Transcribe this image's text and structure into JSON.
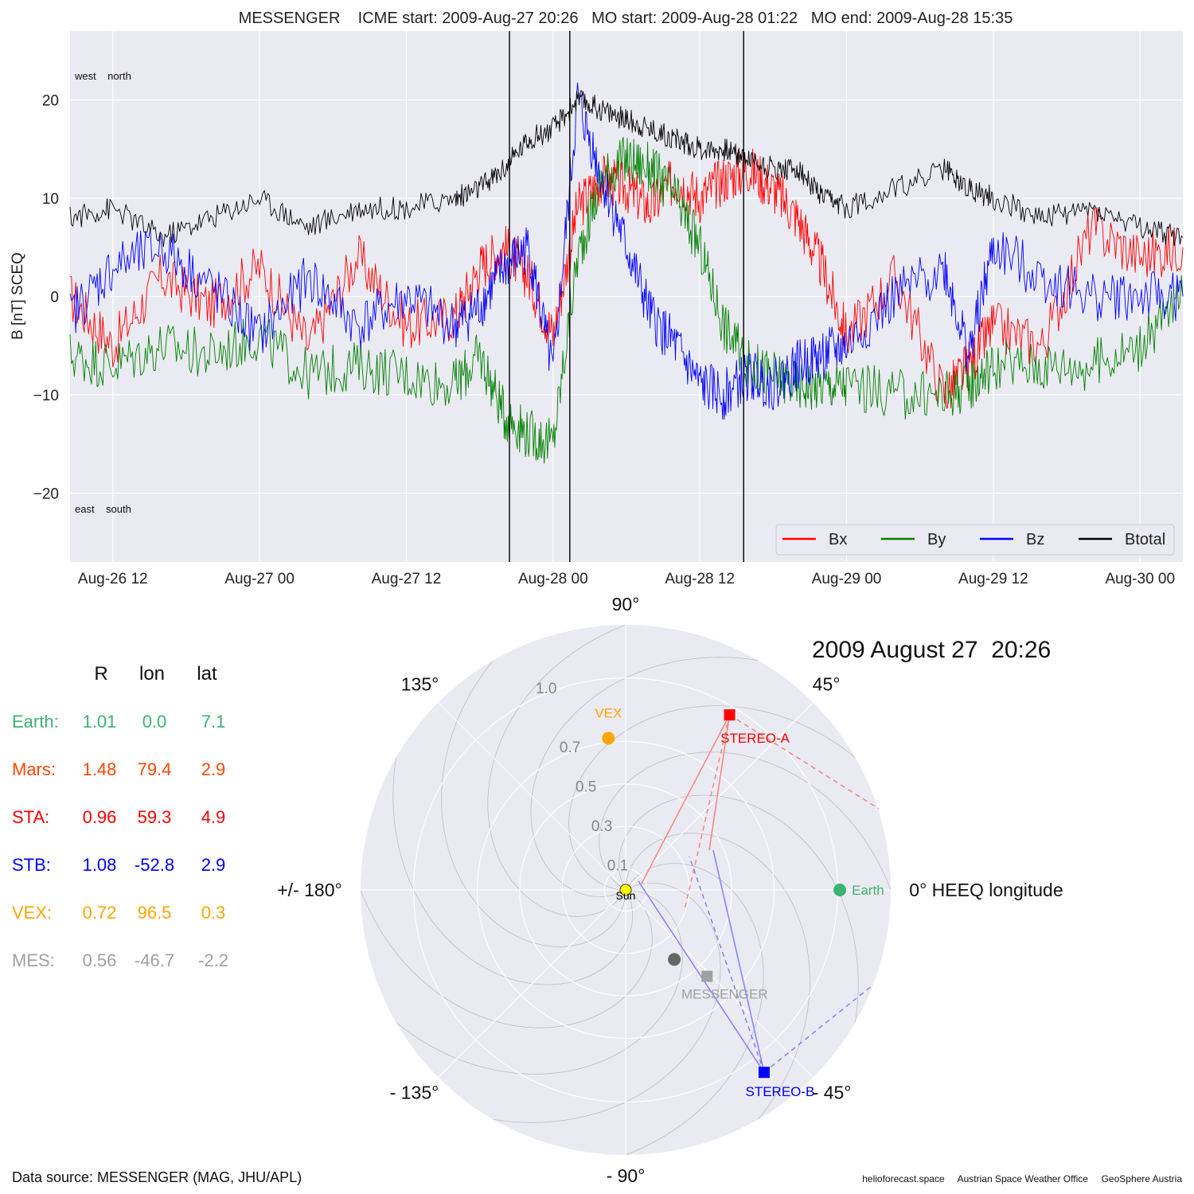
{
  "header": {
    "title": "MESSENGER    ICME start: 2009-Aug-27 20:26   MO start: 2009-Aug-28 01:22   MO end: 2009-Aug-28 15:35"
  },
  "footer": {
    "data_source": "Data source: MESSENGER (MAG, JHU/APL)",
    "credits": "helioforecast.space     Austrian Space Weather Office     GeoSphere Austria"
  },
  "chart_data": [
    {
      "type": "line",
      "title": "MESSENGER    ICME start: 2009-Aug-27 20:26   MO start: 2009-Aug-28 01:22   MO end: 2009-Aug-28 15:35",
      "ylabel": "B [nT] SCEQ",
      "x_range": [
        "2009-08-26 08:30",
        "2009-08-30 03:30"
      ],
      "ylim": [
        -27,
        27
      ],
      "yticks": [
        20,
        10,
        0,
        -10,
        -20
      ],
      "ytick_labels": [
        "20",
        "10",
        "0",
        "−10",
        "−20"
      ],
      "xticks": [
        {
          "t": "2009-08-26 12:00",
          "label": "Aug-26 12"
        },
        {
          "t": "2009-08-27 00:00",
          "label": "Aug-27 00"
        },
        {
          "t": "2009-08-27 12:00",
          "label": "Aug-27 12"
        },
        {
          "t": "2009-08-28 00:00",
          "label": "Aug-28 00"
        },
        {
          "t": "2009-08-28 12:00",
          "label": "Aug-28 12"
        },
        {
          "t": "2009-08-29 00:00",
          "label": "Aug-29 00"
        },
        {
          "t": "2009-08-29 12:00",
          "label": "Aug-29 12"
        },
        {
          "t": "2009-08-30 00:00",
          "label": "Aug-30 00"
        }
      ],
      "grid": true,
      "legend_position": "bottom-right",
      "annotations": {
        "top_left": "west    north",
        "bottom_left": "east    south"
      },
      "event_lines": [
        "2009-08-27 20:26",
        "2009-08-28 01:22",
        "2009-08-28 15:35"
      ],
      "series": [
        {
          "name": "Bx",
          "color": "#ff0000",
          "x": [
            "2009-08-26 08:30",
            "2009-08-26 12:00",
            "2009-08-26 16:00",
            "2009-08-26 20:00",
            "2009-08-27 00:00",
            "2009-08-27 04:00",
            "2009-08-27 08:00",
            "2009-08-27 12:00",
            "2009-08-27 16:00",
            "2009-08-27 18:00",
            "2009-08-27 20:00",
            "2009-08-27 22:00",
            "2009-08-28 00:00",
            "2009-08-28 02:00",
            "2009-08-28 04:00",
            "2009-08-28 06:00",
            "2009-08-28 08:00",
            "2009-08-28 10:00",
            "2009-08-28 12:00",
            "2009-08-28 14:00",
            "2009-08-28 16:00",
            "2009-08-28 18:00",
            "2009-08-28 20:00",
            "2009-08-28 22:00",
            "2009-08-29 00:00",
            "2009-08-29 04:00",
            "2009-08-29 08:00",
            "2009-08-29 10:00",
            "2009-08-29 12:00",
            "2009-08-29 16:00",
            "2009-08-29 20:00",
            "2009-08-30 00:00",
            "2009-08-30 03:30"
          ],
          "values": [
            0,
            -5,
            2,
            -1,
            3,
            -5,
            4,
            -3,
            -2,
            3,
            5,
            2,
            -4,
            9,
            12,
            11,
            9,
            12,
            10,
            12,
            13,
            11,
            8,
            3,
            -4,
            2,
            -10,
            -7,
            -3,
            -5,
            7,
            4,
            5
          ]
        },
        {
          "name": "By",
          "color": "#008000",
          "x": [
            "2009-08-26 08:30",
            "2009-08-26 12:00",
            "2009-08-26 16:00",
            "2009-08-26 20:00",
            "2009-08-27 00:00",
            "2009-08-27 04:00",
            "2009-08-27 08:00",
            "2009-08-27 12:00",
            "2009-08-27 16:00",
            "2009-08-27 18:00",
            "2009-08-27 20:00",
            "2009-08-27 22:00",
            "2009-08-28 00:00",
            "2009-08-28 02:00",
            "2009-08-28 04:00",
            "2009-08-28 06:00",
            "2009-08-28 08:00",
            "2009-08-28 10:00",
            "2009-08-28 12:00",
            "2009-08-28 14:00",
            "2009-08-28 16:00",
            "2009-08-28 18:00",
            "2009-08-28 20:00",
            "2009-08-28 22:00",
            "2009-08-29 00:00",
            "2009-08-29 04:00",
            "2009-08-29 08:00",
            "2009-08-29 10:00",
            "2009-08-29 12:00",
            "2009-08-29 16:00",
            "2009-08-29 20:00",
            "2009-08-30 00:00",
            "2009-08-30 03:30"
          ],
          "values": [
            -6,
            -7,
            -5,
            -6,
            -4,
            -8,
            -7,
            -8,
            -9,
            -6,
            -12,
            -14,
            -15,
            4,
            12,
            14,
            13,
            10,
            5,
            -3,
            -7,
            -8,
            -9,
            -9,
            -9,
            -10,
            -10,
            -9,
            -7,
            -7,
            -7,
            -5,
            0
          ]
        },
        {
          "name": "Bz",
          "color": "#0000ff",
          "x": [
            "2009-08-26 08:30",
            "2009-08-26 12:00",
            "2009-08-26 16:00",
            "2009-08-26 20:00",
            "2009-08-27 00:00",
            "2009-08-27 04:00",
            "2009-08-27 08:00",
            "2009-08-27 12:00",
            "2009-08-27 16:00",
            "2009-08-27 18:00",
            "2009-08-27 20:00",
            "2009-08-27 22:00",
            "2009-08-28 00:00",
            "2009-08-28 02:00",
            "2009-08-28 04:00",
            "2009-08-28 06:00",
            "2009-08-28 08:00",
            "2009-08-28 10:00",
            "2009-08-28 12:00",
            "2009-08-28 14:00",
            "2009-08-28 16:00",
            "2009-08-28 18:00",
            "2009-08-28 20:00",
            "2009-08-28 22:00",
            "2009-08-29 00:00",
            "2009-08-29 04:00",
            "2009-08-29 08:00",
            "2009-08-29 10:00",
            "2009-08-29 12:00",
            "2009-08-29 16:00",
            "2009-08-29 20:00",
            "2009-08-30 00:00",
            "2009-08-30 03:30"
          ],
          "values": [
            -2,
            3,
            5,
            1,
            -4,
            2,
            -3,
            0,
            -3,
            -1,
            3,
            5,
            -8,
            20,
            12,
            5,
            -2,
            -5,
            -9,
            -10,
            -8,
            -9,
            -7,
            -6,
            -5,
            0,
            3,
            -6,
            5,
            2,
            0,
            0,
            0
          ]
        },
        {
          "name": "Btotal",
          "color": "#000000",
          "x": [
            "2009-08-26 08:30",
            "2009-08-26 12:00",
            "2009-08-26 16:00",
            "2009-08-26 20:00",
            "2009-08-27 00:00",
            "2009-08-27 04:00",
            "2009-08-27 08:00",
            "2009-08-27 12:00",
            "2009-08-27 16:00",
            "2009-08-27 18:00",
            "2009-08-27 20:00",
            "2009-08-27 22:00",
            "2009-08-28 00:00",
            "2009-08-28 02:00",
            "2009-08-28 04:00",
            "2009-08-28 06:00",
            "2009-08-28 08:00",
            "2009-08-28 10:00",
            "2009-08-28 12:00",
            "2009-08-28 14:00",
            "2009-08-28 16:00",
            "2009-08-28 18:00",
            "2009-08-28 20:00",
            "2009-08-28 22:00",
            "2009-08-29 00:00",
            "2009-08-29 04:00",
            "2009-08-29 08:00",
            "2009-08-29 10:00",
            "2009-08-29 12:00",
            "2009-08-29 16:00",
            "2009-08-29 20:00",
            "2009-08-30 00:00",
            "2009-08-30 03:30"
          ],
          "values": [
            8,
            9,
            6,
            8,
            10,
            7,
            9,
            9,
            10,
            11,
            13,
            16,
            17,
            20,
            19,
            18,
            17,
            16,
            15,
            15,
            14,
            13,
            13,
            10,
            9,
            11,
            13,
            11,
            10,
            8,
            9,
            7,
            6
          ]
        }
      ]
    },
    {
      "type": "polar",
      "title": "2009 August 27  20:26",
      "angle_labels": [
        {
          "deg": 90,
          "label": "90°"
        },
        {
          "deg": 45,
          "label": "45°"
        },
        {
          "deg": 0,
          "label": "0° HEEQ longitude"
        },
        {
          "deg": -45,
          "label": "- 45°"
        },
        {
          "deg": -90,
          "label": "- 90°"
        },
        {
          "deg": -135,
          "label": "- 135°"
        },
        {
          "deg": 180,
          "label": "+/- 180°"
        },
        {
          "deg": 135,
          "label": "135°"
        }
      ],
      "r_ticks": [
        {
          "r": 0.1,
          "label": "0.1"
        },
        {
          "r": 0.3,
          "label": "0.3"
        },
        {
          "r": 0.5,
          "label": "0.5"
        },
        {
          "r": 0.7,
          "label": "0.7"
        },
        {
          "r": 1.0,
          "label": "1.0"
        }
      ],
      "r_max": 1.25,
      "bodies": [
        {
          "name": "Sun",
          "label": "Sun",
          "r": 0,
          "lon": 0,
          "color": "#ffff00",
          "marker": "circle"
        },
        {
          "name": "Earth",
          "label": "Earth",
          "r": 1.01,
          "lon": 0.0,
          "color": "#3cb371",
          "marker": "circle"
        },
        {
          "name": "STEREO-A",
          "label": "STEREO-A",
          "r": 0.96,
          "lon": 59.3,
          "color": "#ff0000",
          "marker": "square"
        },
        {
          "name": "STEREO-B",
          "label": "STEREO-B",
          "r": 1.08,
          "lon": -52.8,
          "color": "#0000ff",
          "marker": "square"
        },
        {
          "name": "VEX",
          "label": "VEX",
          "r": 0.72,
          "lon": 96.5,
          "color": "#ffa500",
          "marker": "circle"
        },
        {
          "name": "MESSENGER",
          "label": "MESSENGER",
          "r": 0.56,
          "lon": -46.7,
          "color": "#a0a0a0",
          "marker": "square"
        },
        {
          "name": "Mercury",
          "label": "",
          "r": 0.4,
          "lon": -55,
          "color": "#666666",
          "marker": "circle"
        }
      ]
    }
  ],
  "positions_table": {
    "headers": [
      "R",
      "lon",
      "lat"
    ],
    "rows": [
      {
        "label": "Earth:",
        "R": "1.01",
        "lon": "0.0",
        "lat": "7.1",
        "color": "#3cb371"
      },
      {
        "label": "Mars:",
        "R": "1.48",
        "lon": "79.4",
        "lat": "2.9",
        "color": "#ff4500"
      },
      {
        "label": "STA:",
        "R": "0.96",
        "lon": "59.3",
        "lat": "4.9",
        "color": "#ff0000"
      },
      {
        "label": "STB:",
        "R": "1.08",
        "lon": "-52.8",
        "lat": "2.9",
        "color": "#0000ff"
      },
      {
        "label": "VEX:",
        "R": "0.72",
        "lon": "96.5",
        "lat": "0.3",
        "color": "#ffa500"
      },
      {
        "label": "MES:",
        "R": "0.56",
        "lon": "-46.7",
        "lat": "-2.2",
        "color": "#a0a0a0"
      }
    ]
  }
}
